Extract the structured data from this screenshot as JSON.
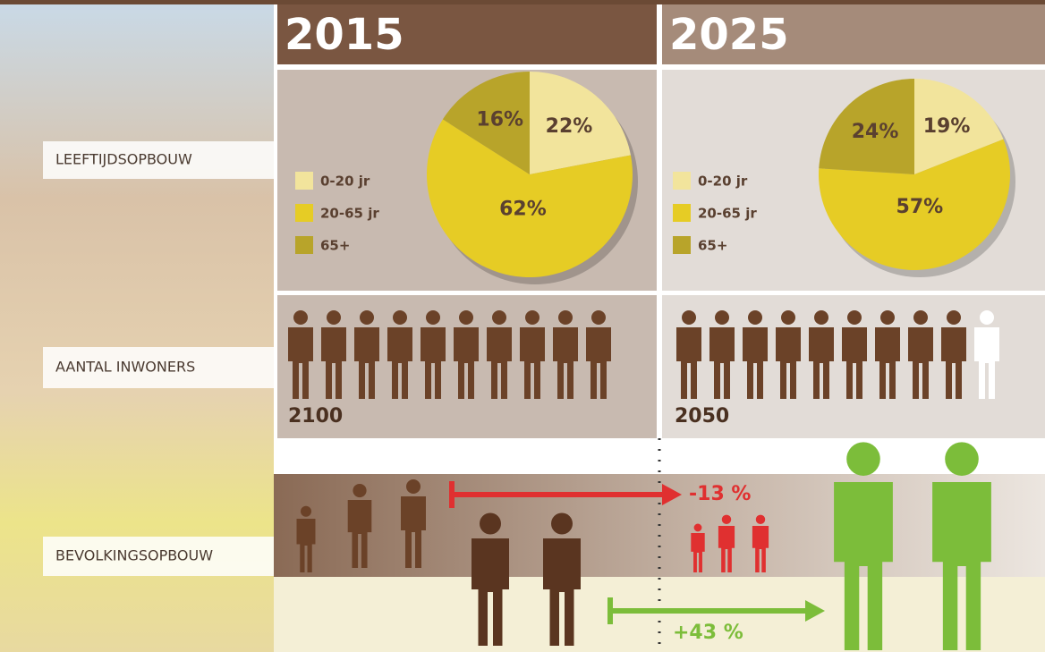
{
  "chart_data": [
    {
      "type": "pie",
      "title": "2015",
      "categories": [
        "0-20 jr",
        "20-65 jr",
        "65+"
      ],
      "values": [
        22,
        62,
        16
      ],
      "value_labels": [
        "22%",
        "62%",
        "16%"
      ],
      "colors": [
        "#f2e49c",
        "#e6cc25",
        "#b8a42a"
      ]
    },
    {
      "type": "pie",
      "title": "2025",
      "categories": [
        "0-20 jr",
        "20-65 jr",
        "65+"
      ],
      "values": [
        19,
        57,
        24
      ],
      "value_labels": [
        "19%",
        "57%",
        "24%"
      ],
      "colors": [
        "#f2e49c",
        "#e6cc25",
        "#b8a42a"
      ]
    }
  ],
  "rows": [
    "LEEFTIJDSOPBOUW",
    "AANTAL INWONERS",
    "BEVOLKINGSOPBOUW"
  ],
  "inhabitants": [
    2100,
    2050
  ],
  "changes": {
    "young": "-13 %",
    "old": "+43 %"
  }
}
